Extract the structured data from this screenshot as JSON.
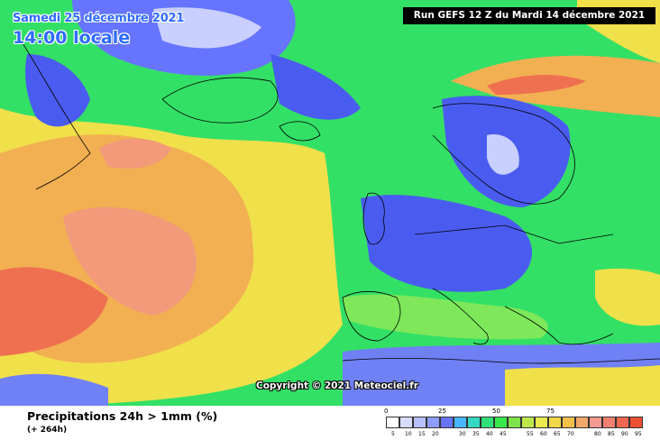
{
  "header": {
    "date": "Samedi 25 décembre 2021",
    "time": "14:00 locale",
    "run": "Run GEFS 12 Z du Mardi 14 décembre 2021"
  },
  "copyright": "Copyright © 2021 Meteociel.fr",
  "product": {
    "title": "Precipitations 24h > 1mm (%)",
    "lead": "(+ 264h)"
  },
  "legend": {
    "major_ticks": [
      "0",
      "25",
      "50",
      "75"
    ],
    "minor_ticks": [
      "5",
      "10",
      "15",
      "20",
      "30",
      "35",
      "40",
      "45",
      "55",
      "60",
      "65",
      "70",
      "80",
      "85",
      "90",
      "95"
    ],
    "colors": [
      "#ffffff",
      "#d7dcff",
      "#b6bfff",
      "#8f9cff",
      "#6674ff",
      "#48b7ff",
      "#35d8c0",
      "#30e07a",
      "#38e84a",
      "#7ee24a",
      "#bde84a",
      "#e8ea4e",
      "#f2d848",
      "#f5c04a",
      "#f2a86a",
      "#f39a90",
      "#f28070",
      "#f06850",
      "#ec5030"
    ]
  },
  "map_colors": {
    "blue_dark": "#4a5cf0",
    "blue": "#7080f5",
    "blue_light": "#c9d0ff",
    "green": "#33e066",
    "green_light": "#7ee85a",
    "yellow": "#f0e04a",
    "orange": "#f2b052",
    "salmon": "#f29a7a",
    "red": "#ef7050",
    "coast": "#000000"
  }
}
